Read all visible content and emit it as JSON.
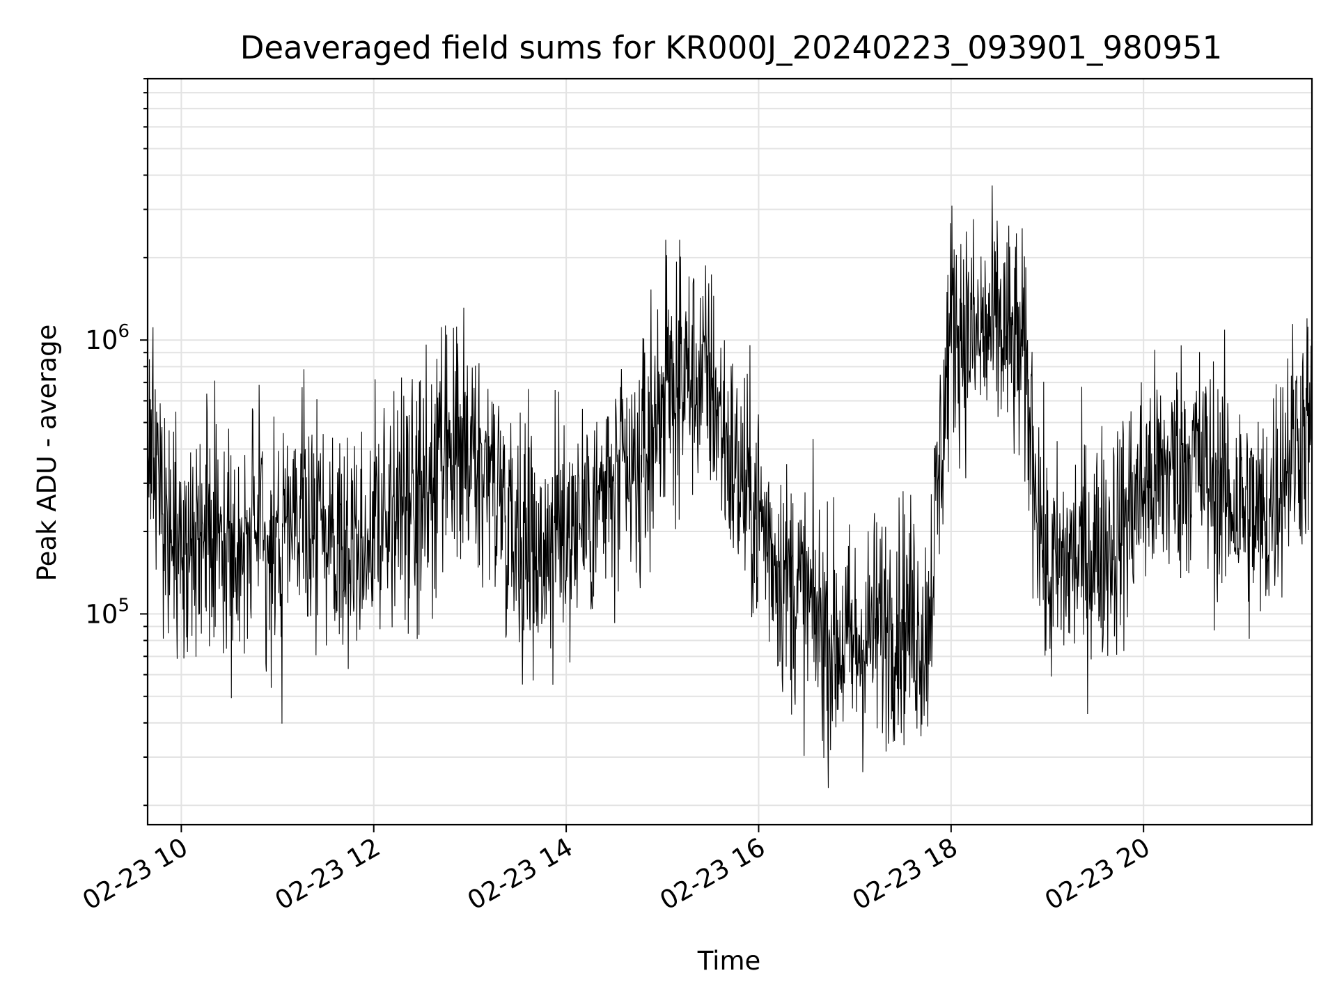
{
  "chart_data": {
    "type": "line",
    "title": "Deaveraged field sums for KR000J_20240223_093901_980951",
    "xlabel": "Time",
    "ylabel": "Peak ADU - average",
    "x_range": [
      "2024-02-23T09:39",
      "2024-02-23T21:45"
    ],
    "ylim": [
      17000,
      9000000
    ],
    "y_scale": "log",
    "x_ticks": [
      "02-23 10",
      "02-23 12",
      "02-23 14",
      "02-23 16",
      "02-23 18",
      "02-23 20"
    ],
    "y_ticks": [
      {
        "base": "10",
        "exp": "5"
      },
      {
        "base": "10",
        "exp": "6"
      }
    ],
    "grid": true,
    "grid_minor_y": true,
    "line_color": "#000000",
    "series": [
      {
        "x": [
          "2024-02-23T09:39",
          "2024-02-23T09:45",
          "2024-02-23T09:50",
          "2024-02-23T10:00",
          "2024-02-23T10:15",
          "2024-02-23T10:30",
          "2024-02-23T10:45",
          "2024-02-23T11:00",
          "2024-02-23T11:15",
          "2024-02-23T11:30",
          "2024-02-23T11:45",
          "2024-02-23T12:00",
          "2024-02-23T12:15",
          "2024-02-23T12:30",
          "2024-02-23T12:45",
          "2024-02-23T13:00",
          "2024-02-23T13:15",
          "2024-02-23T13:30",
          "2024-02-23T13:45",
          "2024-02-23T14:00",
          "2024-02-23T14:15",
          "2024-02-23T14:30",
          "2024-02-23T14:45",
          "2024-02-23T15:00",
          "2024-02-23T15:15",
          "2024-02-23T15:30",
          "2024-02-23T15:45",
          "2024-02-23T16:00",
          "2024-02-23T16:15",
          "2024-02-23T16:30",
          "2024-02-23T16:45",
          "2024-02-23T17:00",
          "2024-02-23T17:15",
          "2024-02-23T17:30",
          "2024-02-23T17:45",
          "2024-02-23T18:00",
          "2024-02-23T18:15",
          "2024-02-23T18:30",
          "2024-02-23T18:45",
          "2024-02-23T19:00",
          "2024-02-23T19:15",
          "2024-02-23T19:30",
          "2024-02-23T19:45",
          "2024-02-23T20:00",
          "2024-02-23T20:15",
          "2024-02-23T20:30",
          "2024-02-23T20:45",
          "2024-02-23T21:00",
          "2024-02-23T21:15",
          "2024-02-23T21:30",
          "2024-02-23T21:45"
        ],
        "y": [
          300000,
          400000,
          200000,
          160000,
          220000,
          180000,
          190000,
          170000,
          230000,
          200000,
          180000,
          210000,
          240000,
          250000,
          340000,
          380000,
          320000,
          200000,
          170000,
          210000,
          240000,
          280000,
          300000,
          650000,
          750000,
          700000,
          330000,
          230000,
          140000,
          110000,
          80000,
          75000,
          90000,
          100000,
          85000,
          1200000,
          1000000,
          1100000,
          850000,
          130000,
          160000,
          170000,
          200000,
          290000,
          330000,
          380000,
          300000,
          250000,
          210000,
          400000,
          500000
        ]
      }
    ]
  }
}
